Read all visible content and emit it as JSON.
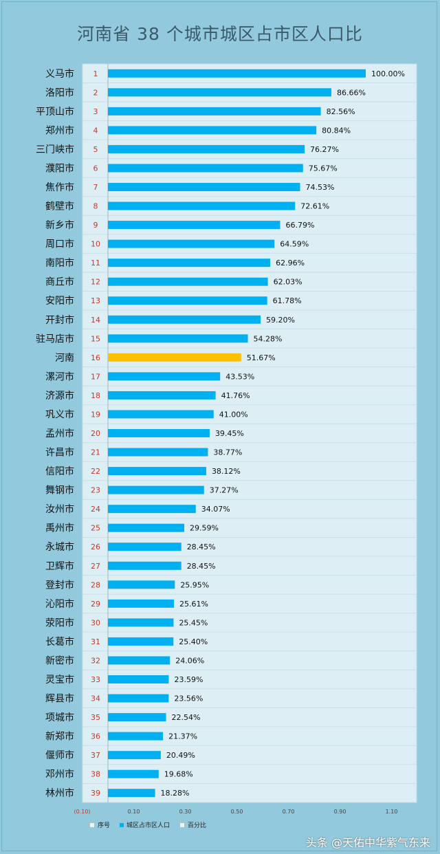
{
  "title": "河南省 38 个城市城区占市区人口比",
  "chart_data": {
    "type": "bar",
    "orientation": "horizontal",
    "title": "河南省 38 个城市城区占市区人口比",
    "categories": [
      "义马市",
      "洛阳市",
      "平顶山市",
      "郑州市",
      "三门峡市",
      "濮阳市",
      "焦作市",
      "鹤壁市",
      "新乡市",
      "周口市",
      "南阳市",
      "商丘市",
      "安阳市",
      "开封市",
      "驻马店市",
      "河南",
      "漯河市",
      "济源市",
      "巩义市",
      "孟州市",
      "许昌市",
      "信阳市",
      "舞钢市",
      "汝州市",
      "禹州市",
      "永城市",
      "卫辉市",
      "登封市",
      "沁阳市",
      "荥阳市",
      "长葛市",
      "新密市",
      "灵宝市",
      "辉县市",
      "项城市",
      "新郑市",
      "偃师市",
      "邓州市",
      "林州市"
    ],
    "ranks": [
      "1",
      "2",
      "3",
      "4",
      "5",
      "6",
      "7",
      "8",
      "9",
      "10",
      "11",
      "12",
      "13",
      "14",
      "15",
      "16",
      "17",
      "18",
      "19",
      "20",
      "21",
      "22",
      "23",
      "24",
      "25",
      "26",
      "27",
      "28",
      "29",
      "30",
      "31",
      "32",
      "33",
      "34",
      "35",
      "36",
      "37",
      "38",
      "39"
    ],
    "values": [
      1.0,
      0.8666,
      0.8256,
      0.8084,
      0.7627,
      0.7567,
      0.7453,
      0.7261,
      0.6679,
      0.6459,
      0.6296,
      0.6203,
      0.6178,
      0.592,
      0.5428,
      0.5167,
      0.4353,
      0.4176,
      0.41,
      0.3945,
      0.3877,
      0.3812,
      0.3727,
      0.3407,
      0.2959,
      0.2845,
      0.2845,
      0.2595,
      0.2561,
      0.2545,
      0.254,
      0.2406,
      0.2359,
      0.2356,
      0.2254,
      0.2137,
      0.2049,
      0.1968,
      0.1828
    ],
    "value_labels": [
      "100.00%",
      "86.66%",
      "82.56%",
      "80.84%",
      "76.27%",
      "75.67%",
      "74.53%",
      "72.61%",
      "66.79%",
      "64.59%",
      "62.96%",
      "62.03%",
      "61.78%",
      "59.20%",
      "54.28%",
      "51.67%",
      "43.53%",
      "41.76%",
      "41.00%",
      "39.45%",
      "38.77%",
      "38.12%",
      "37.27%",
      "34.07%",
      "29.59%",
      "28.45%",
      "28.45%",
      "25.95%",
      "25.61%",
      "25.45%",
      "25.40%",
      "24.06%",
      "23.59%",
      "23.56%",
      "22.54%",
      "21.37%",
      "20.49%",
      "19.68%",
      "18.28%"
    ],
    "xlim": [
      -0.1,
      1.1
    ],
    "xticks": [
      "(0.10)",
      "0.10",
      "0.30",
      "0.50",
      "0.70",
      "0.90",
      "1.10"
    ],
    "xtick_values": [
      -0.1,
      0.1,
      0.3,
      0.5,
      0.7,
      0.9,
      1.1
    ],
    "highlight_category": "河南",
    "colors": {
      "bar": "#00b0f0",
      "highlight": "#ffc000",
      "plot_bg": "#ddeef4",
      "page_bg": "#93c9dc"
    },
    "legend": [
      "序号",
      "城区占市区人口",
      "百分比"
    ],
    "legend_position": "bottom-left"
  },
  "watermark": "头条 @天佑中华紫气东来"
}
